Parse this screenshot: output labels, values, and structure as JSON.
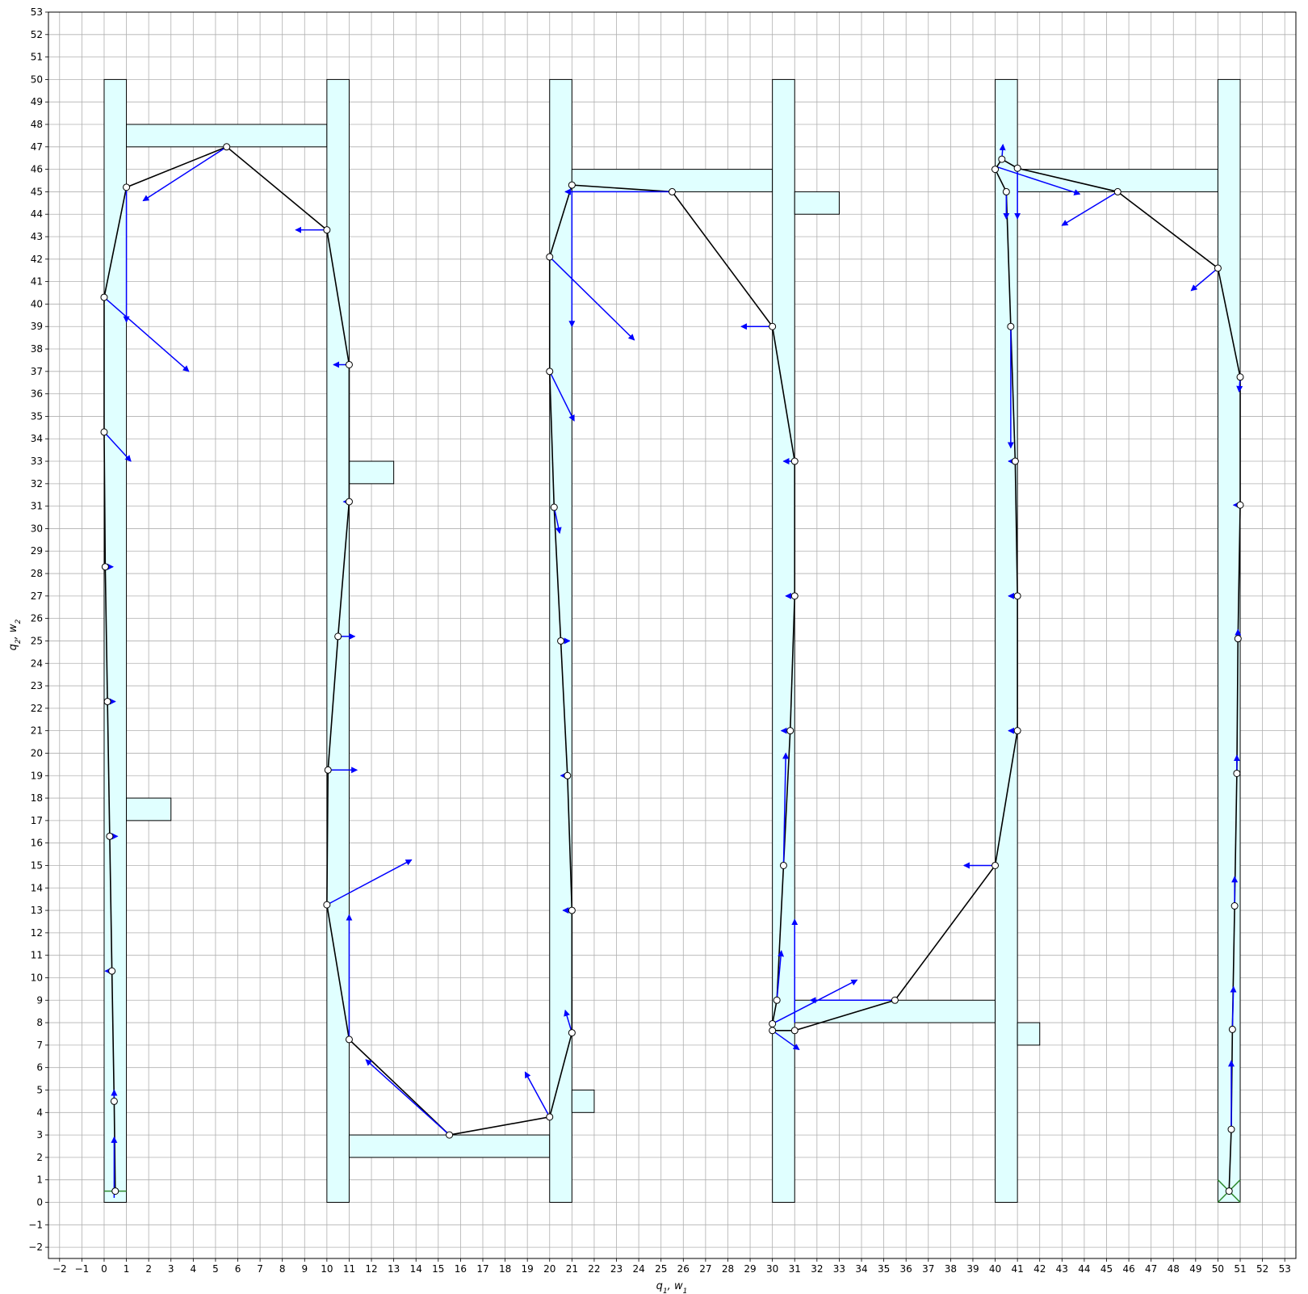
{
  "chart_data": {
    "type": "scatter",
    "xlabel": "q1, w1",
    "ylabel": "q2, w2",
    "xlabel_parts": {
      "a": "q",
      "a_sub": "1",
      "sep": ", ",
      "b": "w",
      "b_sub": "1"
    },
    "ylabel_parts": {
      "a": "q",
      "a_sub": "2",
      "sep": ", ",
      "b": "w",
      "b_sub": "2"
    },
    "xlim": [
      -2.5,
      53.5
    ],
    "ylim": [
      -2.5,
      53
    ],
    "xticks": [
      -2,
      -1,
      0,
      1,
      2,
      3,
      4,
      5,
      6,
      7,
      8,
      9,
      10,
      11,
      12,
      13,
      14,
      15,
      16,
      17,
      18,
      19,
      20,
      21,
      22,
      23,
      24,
      25,
      26,
      27,
      28,
      29,
      30,
      31,
      32,
      33,
      34,
      35,
      36,
      37,
      38,
      39,
      40,
      41,
      42,
      43,
      44,
      45,
      46,
      47,
      48,
      49,
      50,
      51,
      52,
      53
    ],
    "yticks": [
      -2,
      -1,
      0,
      1,
      2,
      3,
      4,
      5,
      6,
      7,
      8,
      9,
      10,
      11,
      12,
      13,
      14,
      15,
      16,
      17,
      18,
      19,
      20,
      21,
      22,
      23,
      24,
      25,
      26,
      27,
      28,
      29,
      30,
      31,
      32,
      33,
      34,
      35,
      36,
      37,
      38,
      39,
      40,
      41,
      42,
      43,
      44,
      45,
      46,
      47,
      48,
      49,
      50,
      51,
      52,
      53
    ],
    "grid": true,
    "colors": {
      "obstacle_fill": "#e0ffff",
      "obstacle_edge": "#000000",
      "path": "#000000",
      "arrow": "#0000ff",
      "marker_face": "#ffffff",
      "marker_edge": "#000000",
      "start": "#2e8b2e",
      "goal": "#2e8b2e",
      "grid": "#b0b0b0"
    },
    "obstacles": [
      [
        0,
        0,
        1,
        50
      ],
      [
        1,
        47,
        10,
        48
      ],
      [
        1,
        17,
        3,
        18
      ],
      [
        10,
        0,
        11,
        50
      ],
      [
        11,
        32,
        13,
        33
      ],
      [
        11,
        2,
        20,
        3
      ],
      [
        20,
        0,
        21,
        50
      ],
      [
        21,
        45,
        30,
        46
      ],
      [
        21,
        4,
        22,
        5
      ],
      [
        30,
        0,
        31,
        50
      ],
      [
        31,
        44,
        33,
        45
      ],
      [
        31,
        8,
        40,
        9
      ],
      [
        40,
        0,
        41,
        50
      ],
      [
        41,
        45,
        50,
        46
      ],
      [
        41,
        7,
        42,
        8
      ],
      [
        50,
        0,
        51,
        50
      ]
    ],
    "path": [
      [
        0.5,
        0.5
      ],
      [
        0.45,
        4.5
      ],
      [
        0.35,
        10.3
      ],
      [
        0.25,
        16.3
      ],
      [
        0.15,
        22.3
      ],
      [
        0.05,
        28.3
      ],
      [
        0,
        34.3
      ],
      [
        0,
        40.3
      ],
      [
        1,
        45.2
      ],
      [
        5.5,
        47
      ],
      [
        10,
        43.3
      ],
      [
        11,
        37.3
      ],
      [
        11,
        31.2
      ],
      [
        10.5,
        25.2
      ],
      [
        10.05,
        19.25
      ],
      [
        10,
        13.25
      ],
      [
        11,
        7.25
      ],
      [
        15.5,
        3
      ],
      [
        20,
        3.8
      ],
      [
        21,
        7.55
      ],
      [
        21,
        13
      ],
      [
        20.8,
        19
      ],
      [
        20.5,
        25
      ],
      [
        20.2,
        30.95
      ],
      [
        20,
        37
      ],
      [
        20,
        42.1
      ],
      [
        21,
        45.3
      ],
      [
        25.5,
        45
      ],
      [
        30,
        39
      ],
      [
        31,
        33
      ],
      [
        31,
        27
      ],
      [
        30.8,
        21
      ],
      [
        30.5,
        15
      ],
      [
        30.2,
        9
      ],
      [
        30,
        7.95
      ],
      [
        30,
        7.65
      ],
      [
        31,
        7.65
      ],
      [
        35.5,
        9
      ],
      [
        40,
        15
      ],
      [
        41,
        21
      ],
      [
        41,
        27
      ],
      [
        40.9,
        33
      ],
      [
        40.7,
        39
      ],
      [
        40.5,
        45
      ],
      [
        40,
        46
      ],
      [
        40.3,
        46.45
      ],
      [
        41,
        46.05
      ],
      [
        45.5,
        45
      ],
      [
        50,
        41.6
      ],
      [
        51,
        36.75
      ],
      [
        51,
        31.05
      ],
      [
        50.9,
        25.1
      ],
      [
        50.85,
        19.1
      ],
      [
        50.75,
        13.2
      ],
      [
        50.65,
        7.7
      ],
      [
        50.6,
        3.25
      ],
      [
        50.5,
        0.5
      ]
    ],
    "arrows": [
      [
        0.45,
        0.2,
        0.45,
        2.9
      ],
      [
        0.45,
        4.4,
        0.45,
        5
      ],
      [
        0.35,
        10.3,
        0.05,
        10.3
      ],
      [
        0.25,
        16.3,
        0.6,
        16.3
      ],
      [
        0.15,
        22.3,
        0.5,
        22.3
      ],
      [
        0.05,
        28.3,
        0.4,
        28.3
      ],
      [
        0,
        34.3,
        1.2,
        33
      ],
      [
        0,
        40.3,
        3.8,
        37
      ],
      [
        1,
        45.2,
        1,
        39.2
      ],
      [
        5.5,
        47,
        1.75,
        44.6
      ],
      [
        10,
        43.3,
        8.6,
        43.3
      ],
      [
        11,
        37.3,
        10.3,
        37.3
      ],
      [
        11,
        31.2,
        10.75,
        31.2
      ],
      [
        10.5,
        25.2,
        11.25,
        25.2
      ],
      [
        10.05,
        19.25,
        11.35,
        19.25
      ],
      [
        10,
        13.25,
        13.8,
        15.25
      ],
      [
        11,
        7.25,
        11,
        12.8
      ],
      [
        15.5,
        3,
        11.75,
        6.35
      ],
      [
        20,
        3.8,
        18.9,
        5.8
      ],
      [
        21,
        7.55,
        20.7,
        8.55
      ],
      [
        21,
        13,
        20.6,
        13
      ],
      [
        20.8,
        19,
        20.5,
        19
      ],
      [
        20.5,
        25,
        20.9,
        25
      ],
      [
        20.2,
        30.95,
        20.45,
        29.8
      ],
      [
        20,
        37,
        21.1,
        34.8
      ],
      [
        20,
        42.1,
        23.8,
        38.4
      ],
      [
        21,
        45,
        21,
        39
      ],
      [
        25.5,
        45,
        20.7,
        45
      ],
      [
        30,
        39,
        28.6,
        39
      ],
      [
        31,
        33,
        30.5,
        33
      ],
      [
        31,
        27,
        30.6,
        27
      ],
      [
        30.8,
        21,
        30.4,
        21
      ],
      [
        30.5,
        15,
        30.6,
        20
      ],
      [
        30.2,
        9,
        30.4,
        11.2
      ],
      [
        30,
        7.95,
        33.8,
        9.9
      ],
      [
        30,
        7.65,
        31.2,
        6.8
      ],
      [
        31,
        8,
        31,
        12.6
      ],
      [
        35.5,
        9,
        31.7,
        9
      ],
      [
        40,
        15,
        38.6,
        15
      ],
      [
        41,
        21,
        40.6,
        21
      ],
      [
        41,
        27,
        40.6,
        27
      ],
      [
        40.9,
        33,
        40.6,
        33
      ],
      [
        40.7,
        39,
        40.7,
        33.6
      ],
      [
        40.5,
        45,
        40.5,
        43.8
      ],
      [
        41,
        46.05,
        41,
        43.8
      ],
      [
        40.3,
        46.45,
        40.35,
        47.1
      ],
      [
        40.1,
        46.1,
        43.8,
        44.9
      ],
      [
        45.5,
        45,
        43,
        43.5
      ],
      [
        50,
        41.6,
        48.8,
        40.6
      ],
      [
        51,
        36.75,
        50.95,
        36.1
      ],
      [
        51,
        31.05,
        50.7,
        31.05
      ],
      [
        50.9,
        25.1,
        50.9,
        25.5
      ],
      [
        50.85,
        19.1,
        50.85,
        19.9
      ],
      [
        50.75,
        13.2,
        50.75,
        14.5
      ],
      [
        50.65,
        7.7,
        50.7,
        9.6
      ],
      [
        50.6,
        3.25,
        50.6,
        6.3
      ]
    ],
    "start": [
      0.5,
      0.5
    ],
    "goal": [
      50.5,
      0.5
    ]
  }
}
